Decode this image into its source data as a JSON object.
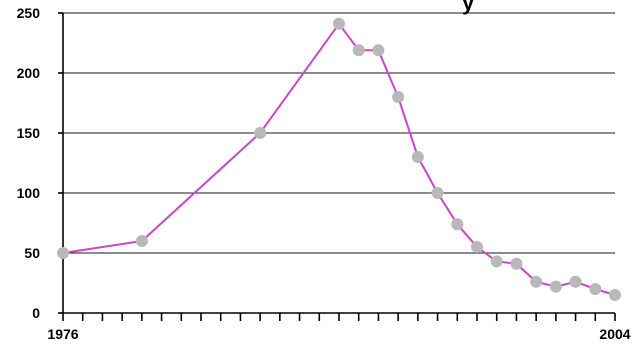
{
  "chart_data": {
    "type": "line",
    "title": "",
    "xlabel": "",
    "ylabel": "",
    "x_tick_labels": [
      "1976",
      "2004"
    ],
    "y_tick_labels": [
      "0",
      "50",
      "100",
      "150",
      "200",
      "250"
    ],
    "xlim": [
      1976,
      2004
    ],
    "ylim": [
      0,
      250
    ],
    "grid": "horizontal",
    "legend": "none",
    "colors": {
      "line": "#cc44cc",
      "marker": "#b8b8b8",
      "grid": "#1a1a1a",
      "axis": "#000000"
    },
    "series": [
      {
        "x": [
          1976,
          1980,
          1986,
          1990,
          1991,
          1992,
          1993,
          1994,
          1995,
          1996,
          1997,
          1998,
          1999,
          2000,
          2001,
          2002,
          2003,
          2004
        ],
        "values": [
          50,
          60,
          150,
          241,
          219,
          219,
          180,
          130,
          100,
          74,
          55,
          43,
          41,
          26,
          22,
          26,
          20,
          15
        ]
      }
    ]
  }
}
